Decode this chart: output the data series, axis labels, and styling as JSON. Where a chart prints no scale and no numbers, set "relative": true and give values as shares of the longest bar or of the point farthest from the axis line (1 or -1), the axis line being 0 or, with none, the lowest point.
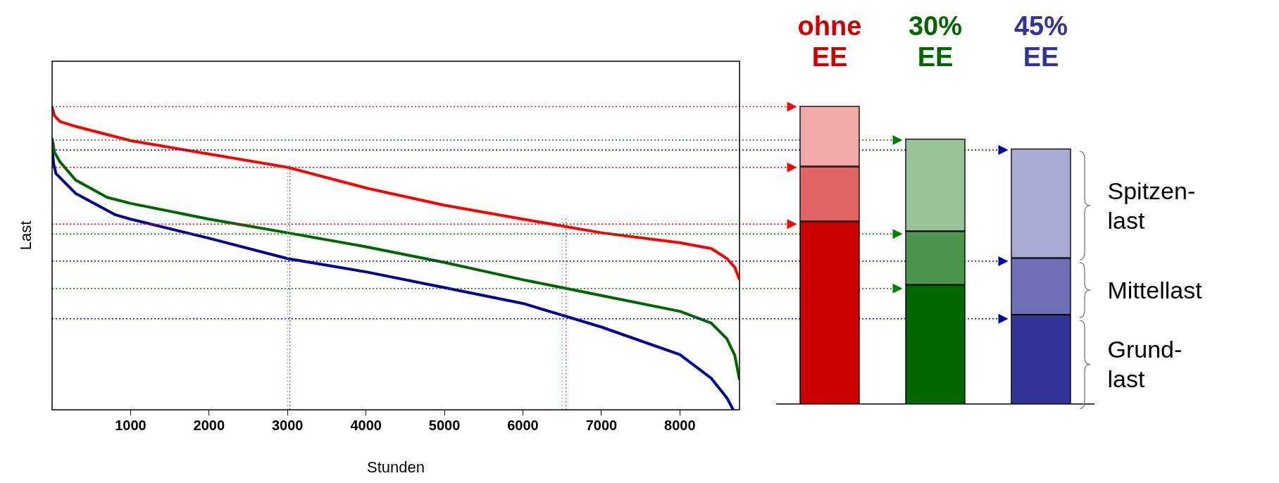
{
  "chart_data": [
    {
      "type": "line",
      "relative": true,
      "xlabel": "Stunden",
      "ylabel": "Last",
      "xlim": [
        0,
        8760
      ],
      "xticks": [
        1000,
        2000,
        3000,
        4000,
        5000,
        6000,
        7000,
        8000
      ],
      "grid": false,
      "legend": false,
      "series": [
        {
          "color": "#ff0000",
          "x": [
            0,
            30,
            100,
            300,
            1000,
            2000,
            3000,
            4000,
            5000,
            6000,
            7000,
            8000,
            8400,
            8600,
            8700,
            8760
          ],
          "values": [
            1.0,
            0.97,
            0.951,
            0.935,
            0.888,
            0.844,
            0.8,
            0.732,
            0.675,
            0.629,
            0.584,
            0.551,
            0.532,
            0.499,
            0.47,
            0.429
          ]
        },
        {
          "color": "#006600",
          "x": [
            0,
            30,
            100,
            300,
            700,
            1000,
            2000,
            3000,
            4000,
            5000,
            6000,
            6500,
            7000,
            8000,
            8400,
            8600,
            8700,
            8760
          ],
          "values": [
            0.896,
            0.85,
            0.818,
            0.758,
            0.701,
            0.681,
            0.629,
            0.584,
            0.538,
            0.486,
            0.429,
            0.403,
            0.377,
            0.325,
            0.286,
            0.234,
            0.18,
            0.099
          ]
        },
        {
          "color": "#000099",
          "x": [
            0,
            20,
            50,
            300,
            800,
            1000,
            2000,
            3000,
            4000,
            5000,
            6000,
            6500,
            7000,
            8000,
            8400,
            8600,
            8680
          ],
          "values": [
            0.862,
            0.81,
            0.779,
            0.714,
            0.644,
            0.629,
            0.566,
            0.499,
            0.455,
            0.403,
            0.351,
            0.312,
            0.273,
            0.182,
            0.104,
            0.039,
            0
          ]
        }
      ],
      "ref_lines": [
        {
          "axis": "x",
          "value": 3000,
          "color": "#6699cc",
          "line_style": "dotted"
        },
        {
          "axis": "x",
          "value": 3030,
          "color": "#ff0000",
          "line_style": "dotted"
        },
        {
          "axis": "x",
          "value": 6500,
          "color": "#6699cc",
          "line_style": "dotted"
        },
        {
          "axis": "x",
          "value": 6550,
          "color": "#ff0000",
          "line_style": "dotted"
        },
        {
          "axis": "y",
          "value": 1.0,
          "color": "#ff0000",
          "line_style": "dotted"
        },
        {
          "axis": "y",
          "value": 0.8,
          "color": "#ff0000",
          "line_style": "dotted"
        },
        {
          "axis": "y",
          "value": 0.613,
          "color": "#ff0000",
          "line_style": "dotted"
        },
        {
          "axis": "y",
          "value": 0.89,
          "color": "#008000",
          "line_style": "dotted"
        },
        {
          "axis": "y",
          "value": 0.58,
          "color": "#008000",
          "line_style": "dotted"
        },
        {
          "axis": "y",
          "value": 0.4,
          "color": "#008000",
          "line_style": "dotted"
        },
        {
          "axis": "y",
          "value": 0.857,
          "color": "#0000aa",
          "line_style": "dotted"
        },
        {
          "axis": "y",
          "value": 0.49,
          "color": "#0000aa",
          "line_style": "dotted"
        },
        {
          "axis": "y",
          "value": 0.3,
          "color": "#0000aa",
          "line_style": "dotted"
        }
      ]
    },
    {
      "type": "bar",
      "relative": true,
      "stacked": true,
      "categories": [
        "ohne\nEE",
        "30%\nEE",
        "45%\nEE"
      ],
      "legend": false,
      "annotations": [
        "Spitzen-\nlast",
        "Mittellast",
        "Grund-\nlast"
      ],
      "series": [
        {
          "colors": [
            "#cc0000",
            "#006600",
            "#333399"
          ],
          "values": [
            0.613,
            0.4,
            0.3
          ]
        },
        {
          "colors": [
            "#e06666",
            "#4d944d",
            "#7070b8"
          ],
          "values": [
            0.184,
            0.18,
            0.19
          ]
        },
        {
          "colors": [
            "#f0a8a8",
            "#99c299",
            "#aaaad6"
          ],
          "values": [
            0.203,
            0.31,
            0.367
          ]
        }
      ]
    }
  ]
}
